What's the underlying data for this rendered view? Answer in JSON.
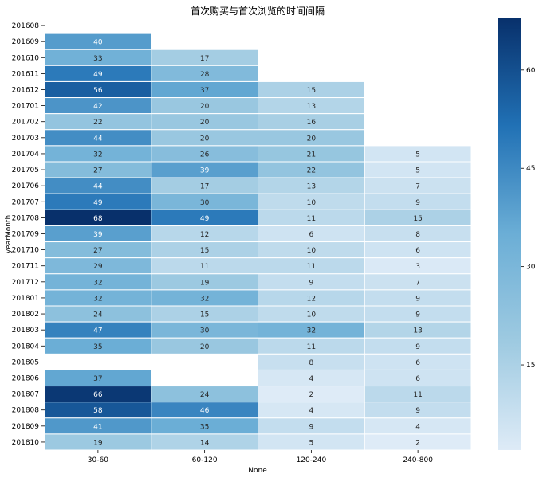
{
  "chart_data": {
    "type": "heatmap",
    "title": "首次购买与首次浏览的时间间隔",
    "xlabel": "None",
    "ylabel": "yearMonth",
    "x_categories": [
      "30-60",
      "60-120",
      "120-240",
      "240-800"
    ],
    "y_categories": [
      "201608",
      "201609",
      "201610",
      "201611",
      "201612",
      "201701",
      "201702",
      "201703",
      "201704",
      "201705",
      "201706",
      "201707",
      "201708",
      "201709",
      "201710",
      "201711",
      "201712",
      "201801",
      "201802",
      "201803",
      "201804",
      "201805",
      "201806",
      "201807",
      "201808",
      "201809",
      "201810"
    ],
    "values": [
      [
        null,
        null,
        null,
        null
      ],
      [
        40,
        null,
        null,
        null
      ],
      [
        33,
        17,
        null,
        null
      ],
      [
        49,
        28,
        null,
        null
      ],
      [
        56,
        37,
        15,
        null
      ],
      [
        42,
        20,
        13,
        null
      ],
      [
        22,
        20,
        16,
        null
      ],
      [
        44,
        20,
        20,
        null
      ],
      [
        32,
        26,
        21,
        5
      ],
      [
        27,
        39,
        22,
        5
      ],
      [
        44,
        17,
        13,
        7
      ],
      [
        49,
        30,
        10,
        9
      ],
      [
        68,
        49,
        11,
        15
      ],
      [
        39,
        12,
        6,
        8
      ],
      [
        27,
        15,
        10,
        6
      ],
      [
        29,
        11,
        11,
        3
      ],
      [
        32,
        19,
        9,
        7
      ],
      [
        32,
        32,
        12,
        9
      ],
      [
        24,
        15,
        10,
        9
      ],
      [
        47,
        30,
        32,
        13
      ],
      [
        35,
        20,
        11,
        9
      ],
      [
        null,
        null,
        8,
        6
      ],
      [
        37,
        null,
        4,
        6
      ],
      [
        66,
        24,
        2,
        11
      ],
      [
        58,
        46,
        4,
        9
      ],
      [
        41,
        35,
        9,
        4
      ],
      [
        19,
        14,
        5,
        2
      ]
    ],
    "colorbar": {
      "min": 2,
      "max": 68,
      "ticks": [
        15,
        30,
        45,
        60
      ],
      "colormap": "Blues"
    }
  }
}
